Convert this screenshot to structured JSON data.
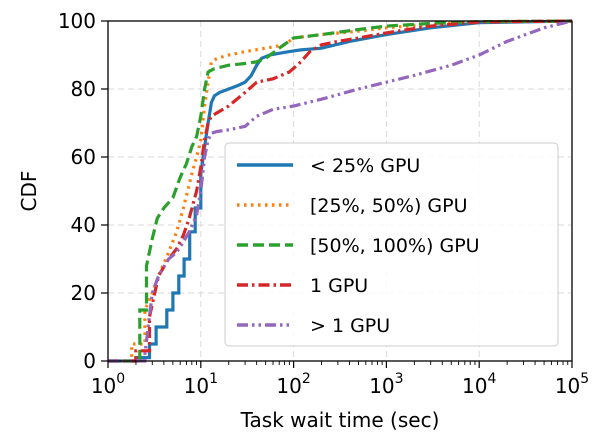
{
  "chart_data": {
    "type": "line",
    "xlabel": "Task wait time (sec)",
    "ylabel": "CDF",
    "xscale": "log",
    "xlim": [
      1,
      100000
    ],
    "ylim": [
      0,
      100
    ],
    "x_ticks": [
      {
        "value": 1,
        "base": "10",
        "exp": "0"
      },
      {
        "value": 10,
        "base": "10",
        "exp": "1"
      },
      {
        "value": 100,
        "base": "10",
        "exp": "2"
      },
      {
        "value": 1000,
        "base": "10",
        "exp": "3"
      },
      {
        "value": 10000,
        "base": "10",
        "exp": "4"
      },
      {
        "value": 100000,
        "base": "10",
        "exp": "5"
      }
    ],
    "y_ticks": [
      0,
      20,
      40,
      60,
      80,
      100
    ],
    "grid": true,
    "legend_position": "center-right",
    "series": [
      {
        "name": "< 25% GPU",
        "color": "#1f77b4",
        "style": "solid",
        "x": [
          1,
          2,
          2,
          2.8,
          2.8,
          3.3,
          3.3,
          4.3,
          4.3,
          5.0,
          5.0,
          5.8,
          5.8,
          6.6,
          6.6,
          7.6,
          7.6,
          8.7,
          8.7,
          10,
          10,
          11,
          12,
          13,
          14,
          16,
          20,
          25,
          30,
          35,
          40,
          45,
          55,
          70,
          90,
          120,
          200,
          400,
          1000,
          3000,
          10000,
          100000
        ],
        "y": [
          0,
          0,
          1,
          1,
          5,
          5,
          10,
          10,
          15,
          15,
          20,
          20,
          25,
          25,
          30,
          30,
          38,
          38,
          45,
          45,
          55,
          63,
          70,
          76,
          78,
          79,
          80,
          81,
          82,
          84,
          87,
          89,
          90,
          90.5,
          91,
          91.5,
          92,
          94,
          96,
          98,
          99.5,
          100
        ]
      },
      {
        "name": "[25%, 50%) GPU",
        "color": "#ff7f0e",
        "style": "dotted",
        "x": [
          1,
          1.8,
          1.8,
          2.5,
          2.5,
          3.0,
          3.5,
          4.5,
          5.5,
          6.5,
          8,
          9,
          10,
          11,
          12,
          13,
          15,
          20,
          30,
          50,
          80,
          100,
          200,
          500,
          1000,
          3000,
          10000,
          100000
        ],
        "y": [
          0,
          0,
          5,
          5,
          15,
          20,
          25,
          32,
          38,
          45,
          55,
          60,
          65,
          75,
          82,
          88,
          89,
          90,
          91,
          92,
          93,
          95,
          96,
          97,
          98,
          99,
          99.8,
          100
        ]
      },
      {
        "name": "[50%, 100%) GPU",
        "color": "#2ca02c",
        "style": "dashed",
        "x": [
          1,
          2.2,
          2.2,
          2.6,
          2.6,
          3.0,
          3.4,
          4.0,
          5.0,
          6.0,
          7.0,
          8.0,
          9.0,
          10,
          11,
          12,
          14,
          20,
          30,
          40,
          50,
          70,
          100,
          200,
          500,
          1000,
          3000,
          10000,
          100000
        ],
        "y": [
          0,
          0,
          15,
          15,
          28,
          36,
          42,
          45,
          48,
          54,
          58,
          63,
          66,
          72,
          80,
          85,
          86,
          87,
          87.5,
          88,
          89,
          92,
          95,
          96,
          97.5,
          98.5,
          99.3,
          99.8,
          100
        ]
      },
      {
        "name": "1 GPU",
        "color": "#d62728",
        "style": "dashdot",
        "x": [
          1,
          2.0,
          2.0,
          2.8,
          2.8,
          3.5,
          4.5,
          5.5,
          6.5,
          7.5,
          9,
          10,
          11,
          12,
          13,
          15,
          20,
          30,
          40,
          60,
          90,
          120,
          150,
          200,
          300,
          500,
          1000,
          3000,
          10000,
          100000
        ],
        "y": [
          0,
          0,
          3,
          3,
          13,
          25,
          30,
          33,
          37,
          42,
          50,
          57,
          65,
          70,
          72,
          73,
          75,
          79,
          82,
          83,
          85,
          88,
          91,
          93,
          94,
          95,
          96.5,
          98.5,
          99.7,
          100
        ]
      },
      {
        "name": "> 1 GPU",
        "color": "#9467bd",
        "style": "dashdotdot",
        "x": [
          1,
          2.5,
          2.5,
          3.0,
          3.5,
          4.5,
          5.5,
          6.5,
          7.5,
          9,
          10,
          11,
          12,
          13,
          15,
          20,
          30,
          40,
          60,
          100,
          200,
          500,
          1000,
          2000,
          5000,
          10000,
          20000,
          50000,
          100000
        ],
        "y": [
          0,
          0,
          2,
          20,
          25,
          30,
          32,
          35,
          38,
          43,
          50,
          60,
          65,
          67,
          67.5,
          68,
          69,
          72,
          74,
          75,
          77,
          80,
          82,
          84,
          87,
          90,
          94,
          98,
          100
        ]
      }
    ]
  }
}
